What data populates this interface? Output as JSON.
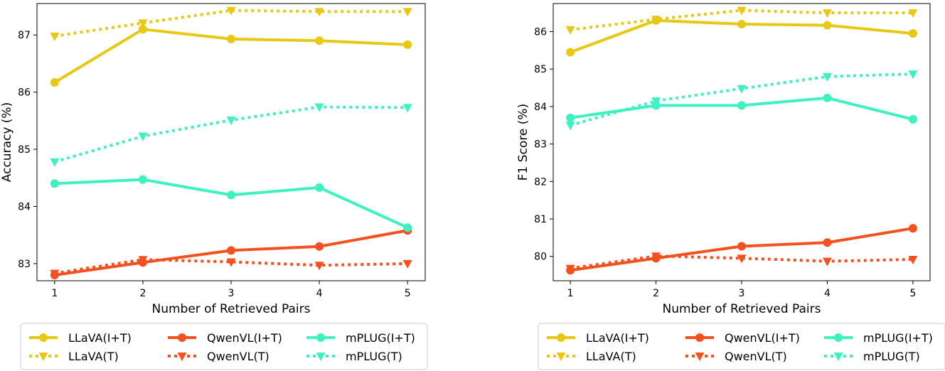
{
  "chart_data": [
    {
      "type": "line",
      "title": "",
      "xlabel": "Number of Retrieved Pairs",
      "ylabel": "Accuracy (%)",
      "x": [
        1,
        2,
        3,
        4,
        5
      ],
      "xticks": [
        "1",
        "2",
        "3",
        "4",
        "5"
      ],
      "yticks": [
        "83",
        "84",
        "85",
        "86",
        "87"
      ],
      "xlim": [
        0.8,
        5.2
      ],
      "ylim": [
        82.7,
        87.55
      ],
      "grid": false,
      "legend_position": "bottom",
      "series": [
        {
          "name": "LLaVA(I+T)",
          "style": "solid",
          "marker": "circle",
          "color": "#E8C814",
          "values": [
            86.17,
            87.1,
            86.93,
            86.9,
            86.83
          ]
        },
        {
          "name": "LLaVA(T)",
          "style": "dotted",
          "marker": "triangle-down",
          "color": "#E8C814",
          "values": [
            86.98,
            87.21,
            87.43,
            87.41,
            87.41
          ]
        },
        {
          "name": "QwenVL(I+T)",
          "style": "solid",
          "marker": "circle",
          "color": "#F4511E",
          "values": [
            82.8,
            83.02,
            83.23,
            83.3,
            83.58
          ]
        },
        {
          "name": "QwenVL(T)",
          "style": "dotted",
          "marker": "triangle-down",
          "color": "#F4511E",
          "values": [
            82.83,
            83.07,
            83.03,
            82.97,
            83.0
          ]
        },
        {
          "name": "mPLUG(I+T)",
          "style": "solid",
          "marker": "circle",
          "color": "#3DF2C0",
          "values": [
            84.4,
            84.47,
            84.2,
            84.33,
            83.63
          ]
        },
        {
          "name": "mPLUG(T)",
          "style": "dotted",
          "marker": "triangle-down",
          "color": "#3DF2C0",
          "values": [
            84.78,
            85.23,
            85.51,
            85.74,
            85.73
          ]
        }
      ]
    },
    {
      "type": "line",
      "title": "",
      "xlabel": "Number of Retrieved Pairs",
      "ylabel": "F1 Score (%)",
      "x": [
        1,
        2,
        3,
        4,
        5
      ],
      "xticks": [
        "1",
        "2",
        "3",
        "4",
        "5"
      ],
      "yticks": [
        "80",
        "81",
        "82",
        "83",
        "84",
        "85",
        "86"
      ],
      "xlim": [
        0.8,
        5.2
      ],
      "ylim": [
        79.35,
        86.75
      ],
      "grid": false,
      "legend_position": "bottom",
      "series": [
        {
          "name": "LLaVA(I+T)",
          "style": "solid",
          "marker": "circle",
          "color": "#E8C814",
          "values": [
            85.45,
            86.3,
            86.2,
            86.17,
            85.95
          ]
        },
        {
          "name": "LLaVA(T)",
          "style": "dotted",
          "marker": "triangle-down",
          "color": "#E8C814",
          "values": [
            86.05,
            86.33,
            86.57,
            86.5,
            86.5
          ]
        },
        {
          "name": "QwenVL(I+T)",
          "style": "solid",
          "marker": "circle",
          "color": "#F4511E",
          "values": [
            79.63,
            79.95,
            80.27,
            80.37,
            80.75
          ]
        },
        {
          "name": "QwenVL(T)",
          "style": "dotted",
          "marker": "triangle-down",
          "color": "#F4511E",
          "values": [
            79.68,
            80.01,
            79.95,
            79.87,
            79.92
          ]
        },
        {
          "name": "mPLUG(I+T)",
          "style": "solid",
          "marker": "circle",
          "color": "#3DF2C0",
          "values": [
            83.7,
            84.03,
            84.03,
            84.23,
            83.66
          ]
        },
        {
          "name": "mPLUG(T)",
          "style": "dotted",
          "marker": "triangle-down",
          "color": "#3DF2C0",
          "values": [
            83.5,
            84.15,
            84.48,
            84.8,
            84.87
          ]
        }
      ]
    }
  ]
}
